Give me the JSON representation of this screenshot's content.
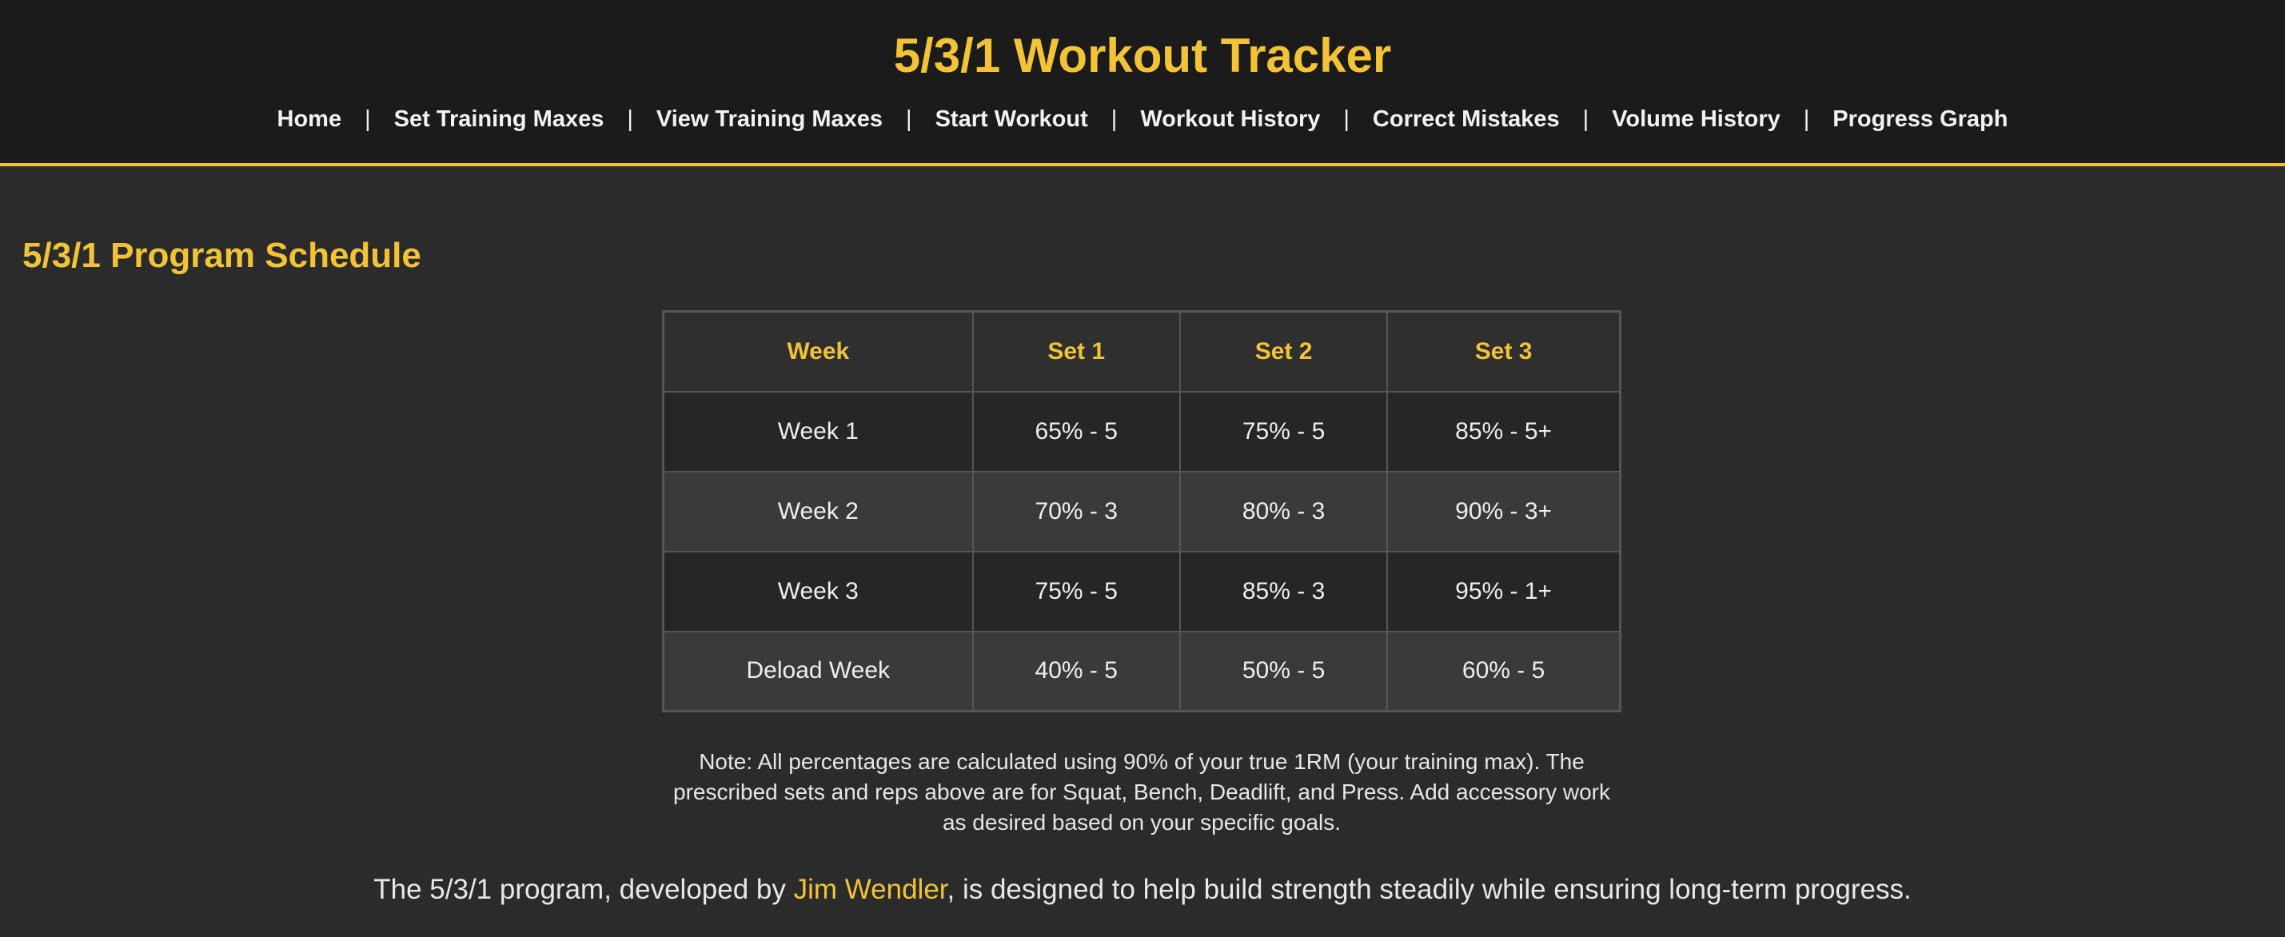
{
  "header": {
    "title": "5/3/1 Workout Tracker",
    "nav": [
      {
        "label": "Home"
      },
      {
        "label": "Set Training Maxes"
      },
      {
        "label": "View Training Maxes"
      },
      {
        "label": "Start Workout"
      },
      {
        "label": "Workout History"
      },
      {
        "label": "Correct Mistakes"
      },
      {
        "label": "Volume History"
      },
      {
        "label": "Progress Graph"
      }
    ],
    "separator": "|"
  },
  "colors": {
    "accent": "#f3c337",
    "header_bg": "#1b1b1b",
    "page_bg": "#2b2b2b"
  },
  "schedule": {
    "title": "5/3/1 Program Schedule",
    "headers": [
      "Week",
      "Set 1",
      "Set 2",
      "Set 3"
    ],
    "rows": [
      [
        "Week 1",
        "65% - 5",
        "75% - 5",
        "85% - 5+"
      ],
      [
        "Week 2",
        "70% - 3",
        "80% - 3",
        "90% - 3+"
      ],
      [
        "Week 3",
        "75% - 5",
        "85% - 3",
        "95% - 1+"
      ],
      [
        "Deload Week",
        "40% - 5",
        "50% - 5",
        "60% - 5"
      ]
    ],
    "note": "Note: All percentages are calculated using 90% of your true 1RM (your training max). The prescribed sets and reps above are for Squat, Bench, Deadlift, and Press. Add accessory work as desired based on your specific goals."
  },
  "intro": {
    "before": "The 5/3/1 program, developed by ",
    "link": "Jim Wendler",
    "after": ", is designed to help build strength steadily while ensuring long-term progress."
  }
}
